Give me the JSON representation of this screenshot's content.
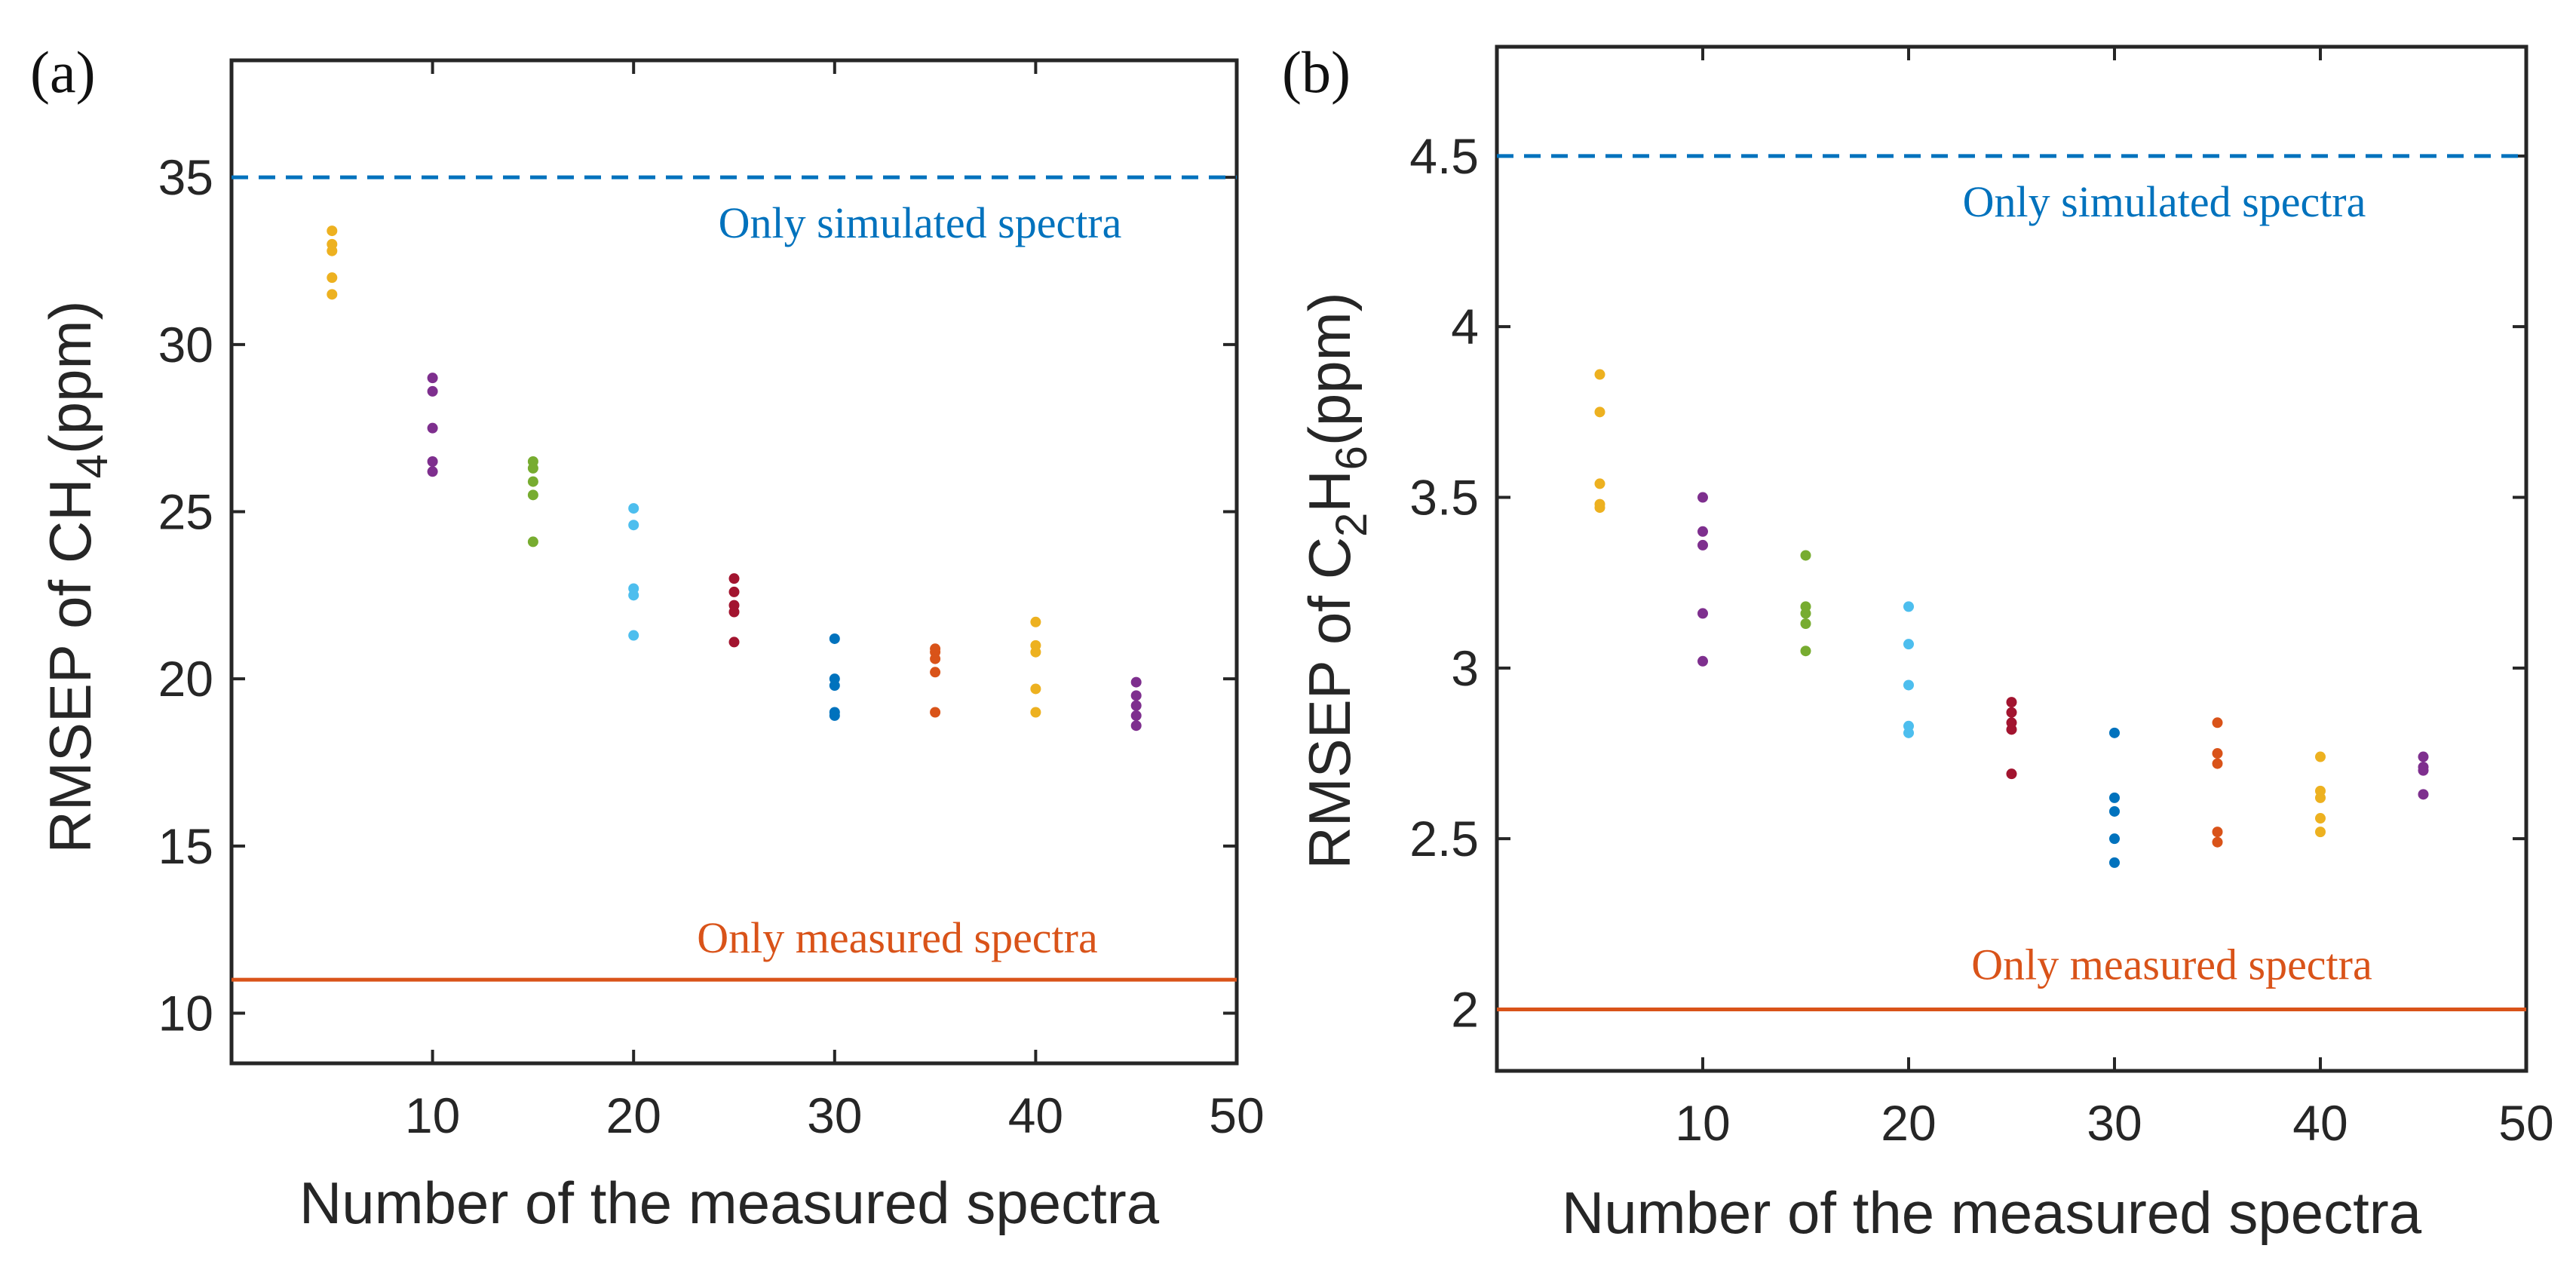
{
  "chart_data": [
    {
      "type": "scatter",
      "panel_label": "(a)",
      "xlabel": "Number of the measured spectra",
      "ylabel_parts": [
        "RMSEP of CH",
        "4",
        "(ppm)"
      ],
      "xlim": [
        0,
        50
      ],
      "ylim": [
        8.5,
        38.5
      ],
      "xticks": [
        10,
        20,
        30,
        40,
        50
      ],
      "xtick_labels": [
        "10",
        "20",
        "30",
        "40",
        "50"
      ],
      "yticks": [
        10,
        15,
        20,
        25,
        30,
        35
      ],
      "ytick_labels": [
        "10",
        "15",
        "20",
        "25",
        "30",
        "35"
      ],
      "reference_lines": [
        {
          "label": "Only simulated spectra",
          "y": 35.0,
          "style": "dashed",
          "color": "#0072BD"
        },
        {
          "label": "Only measured spectra",
          "y": 11.0,
          "style": "solid",
          "color": "#D95319"
        }
      ],
      "series": [
        {
          "x": 5,
          "color": "#EDB120",
          "values": [
            31.5,
            32.0,
            32.8,
            33.0,
            33.4
          ]
        },
        {
          "x": 10,
          "color": "#7E2F8E",
          "values": [
            26.2,
            26.5,
            27.5,
            28.6,
            29.0
          ]
        },
        {
          "x": 15,
          "color": "#77AC30",
          "values": [
            24.1,
            25.5,
            25.9,
            26.3,
            26.5
          ]
        },
        {
          "x": 20,
          "color": "#4DBEEE",
          "values": [
            21.3,
            22.5,
            22.7,
            24.6,
            25.1
          ]
        },
        {
          "x": 25,
          "color": "#A2142F",
          "values": [
            21.1,
            22.0,
            22.2,
            22.6,
            23.0
          ]
        },
        {
          "x": 30,
          "color": "#0072BD",
          "values": [
            18.9,
            19.0,
            19.8,
            20.0,
            21.2
          ]
        },
        {
          "x": 35,
          "color": "#D95319",
          "values": [
            19.0,
            20.2,
            20.6,
            20.8,
            20.9
          ]
        },
        {
          "x": 40,
          "color": "#EDB120",
          "values": [
            19.0,
            19.7,
            20.8,
            21.0,
            21.7
          ]
        },
        {
          "x": 45,
          "color": "#7E2F8E",
          "values": [
            18.6,
            18.9,
            19.2,
            19.5,
            19.9
          ]
        }
      ]
    },
    {
      "type": "scatter",
      "panel_label": "(b)",
      "xlabel": "Number of the measured spectra",
      "ylabel_parts": [
        "RMSEP of C",
        "2",
        "H",
        "6",
        "(ppm)"
      ],
      "xlim": [
        0,
        50
      ],
      "ylim": [
        1.82,
        4.82
      ],
      "xticks": [
        10,
        20,
        30,
        40,
        50
      ],
      "xtick_labels": [
        "10",
        "20",
        "30",
        "40",
        "50"
      ],
      "yticks": [
        2,
        2.5,
        3,
        3.5,
        4,
        4.5
      ],
      "ytick_labels": [
        "2",
        "2.5",
        "3",
        "3.5",
        "4",
        "4.5"
      ],
      "reference_lines": [
        {
          "label": "Only simulated spectra",
          "y": 4.5,
          "style": "dashed",
          "color": "#0072BD"
        },
        {
          "label": "Only measured spectra",
          "y": 2.0,
          "style": "solid",
          "color": "#D95319"
        }
      ],
      "series": [
        {
          "x": 5,
          "color": "#EDB120",
          "values": [
            3.47,
            3.48,
            3.54,
            3.75,
            3.86
          ]
        },
        {
          "x": 10,
          "color": "#7E2F8E",
          "values": [
            3.02,
            3.16,
            3.36,
            3.4,
            3.5
          ]
        },
        {
          "x": 15,
          "color": "#77AC30",
          "values": [
            3.05,
            3.13,
            3.16,
            3.18,
            3.33
          ]
        },
        {
          "x": 20,
          "color": "#4DBEEE",
          "values": [
            2.81,
            2.83,
            2.95,
            3.07,
            3.18
          ]
        },
        {
          "x": 25,
          "color": "#A2142F",
          "values": [
            2.69,
            2.82,
            2.84,
            2.87,
            2.9
          ]
        },
        {
          "x": 30,
          "color": "#0072BD",
          "values": [
            2.43,
            2.5,
            2.58,
            2.62,
            2.81
          ]
        },
        {
          "x": 35,
          "color": "#D95319",
          "values": [
            2.49,
            2.52,
            2.72,
            2.75,
            2.84
          ]
        },
        {
          "x": 40,
          "color": "#EDB120",
          "values": [
            2.52,
            2.56,
            2.62,
            2.64,
            2.74
          ]
        },
        {
          "x": 45,
          "color": "#7E2F8E",
          "values": [
            2.63,
            2.7,
            2.71,
            2.74
          ]
        }
      ]
    }
  ]
}
